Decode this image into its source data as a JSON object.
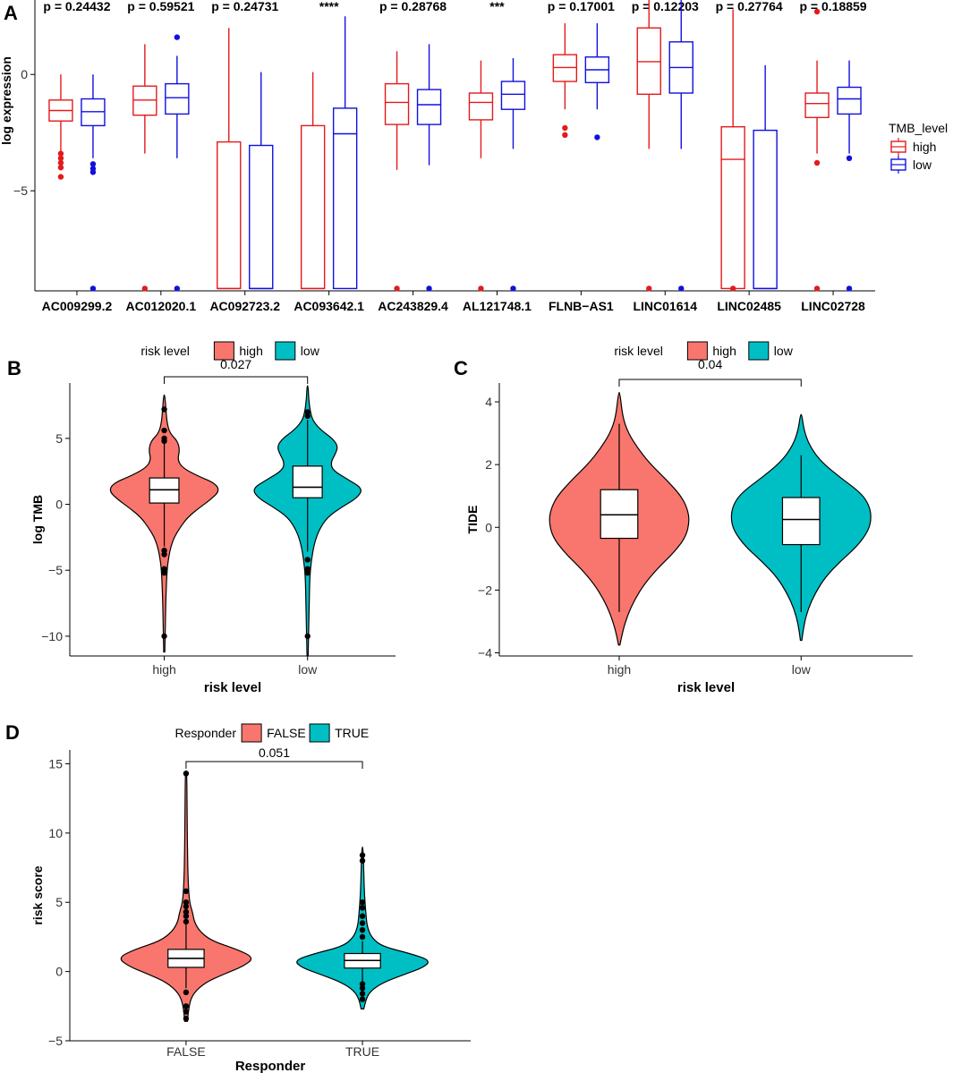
{
  "colors": {
    "high_box": "#E41A1C",
    "low_box": "#1010E0",
    "violin_a": "#F8766D",
    "violin_b": "#00BFC4",
    "axis": "#000000"
  },
  "chart_data": [
    {
      "id": "A",
      "panel_label": "A",
      "type": "box",
      "ylabel": "log expression",
      "xlabel": "",
      "ylim": [
        -9.3,
        3.2
      ],
      "yticks": [
        -5,
        0
      ],
      "legend": {
        "title": "TMB_level",
        "entries": [
          "high",
          "low"
        ],
        "position": "right"
      },
      "categories": [
        "AC009299.2",
        "AC012020.1",
        "AC092723.2",
        "AC093642.1",
        "AC243829.4",
        "AL121748.1",
        "FLNB−AS1",
        "LINC01614",
        "LINC02485",
        "LINC02728"
      ],
      "pvalues": [
        "p = 0.24432",
        "p = 0.59521",
        "p = 0.24731",
        "****",
        "p = 0.28768",
        "***",
        "p = 0.17001",
        "p = 0.12203",
        "p = 0.27764",
        "p = 0.18859"
      ],
      "series": [
        {
          "name": "high",
          "boxes": [
            {
              "wlo": -3.3,
              "q1": -2.0,
              "med": -1.55,
              "q3": -1.1,
              "whi": 0.0,
              "outliers": [
                -3.4,
                -3.6,
                -3.8,
                -4.0,
                -4.4
              ]
            },
            {
              "wlo": -3.4,
              "q1": -1.75,
              "med": -1.1,
              "q3": -0.5,
              "whi": 1.3,
              "outliers": [
                -9.2
              ]
            },
            {
              "wlo": -9.2,
              "q1": -9.2,
              "med": -9.2,
              "q3": -2.9,
              "whi": 2.0,
              "outliers": []
            },
            {
              "wlo": -9.2,
              "q1": -9.2,
              "med": -9.2,
              "q3": -2.2,
              "whi": 0.1,
              "outliers": []
            },
            {
              "wlo": -4.1,
              "q1": -2.15,
              "med": -1.2,
              "q3": -0.4,
              "whi": 1.0,
              "outliers": [
                -9.2
              ]
            },
            {
              "wlo": -3.6,
              "q1": -1.95,
              "med": -1.2,
              "q3": -0.8,
              "whi": 0.6,
              "outliers": [
                -9.2
              ]
            },
            {
              "wlo": -1.5,
              "q1": -0.3,
              "med": 0.3,
              "q3": 0.85,
              "whi": 2.2,
              "outliers": [
                -2.3,
                -2.6
              ]
            },
            {
              "wlo": -3.2,
              "q1": -0.85,
              "med": 0.55,
              "q3": 2.0,
              "whi": 3.2,
              "outliers": [
                -9.2
              ]
            },
            {
              "wlo": -9.2,
              "q1": -9.2,
              "med": -3.65,
              "q3": -2.25,
              "whi": 2.8,
              "outliers": [
                -9.2
              ]
            },
            {
              "wlo": -3.4,
              "q1": -1.85,
              "med": -1.25,
              "q3": -0.8,
              "whi": 0.6,
              "outliers": [
                -3.8,
                2.7,
                -9.2
              ]
            }
          ]
        },
        {
          "name": "low",
          "boxes": [
            {
              "wlo": -3.6,
              "q1": -2.2,
              "med": -1.6,
              "q3": -1.05,
              "whi": 0.0,
              "outliers": [
                -3.85,
                -4.05,
                -4.2,
                -9.2
              ]
            },
            {
              "wlo": -3.6,
              "q1": -1.7,
              "med": -1.0,
              "q3": -0.4,
              "whi": 0.8,
              "outliers": [
                1.6,
                -9.2
              ]
            },
            {
              "wlo": -9.2,
              "q1": -9.2,
              "med": -9.2,
              "q3": -3.05,
              "whi": 0.1,
              "outliers": []
            },
            {
              "wlo": -9.2,
              "q1": -9.2,
              "med": -2.55,
              "q3": -1.45,
              "whi": 2.5,
              "outliers": []
            },
            {
              "wlo": -3.9,
              "q1": -2.15,
              "med": -1.3,
              "q3": -0.65,
              "whi": 1.3,
              "outliers": [
                -9.2
              ]
            },
            {
              "wlo": -3.2,
              "q1": -1.5,
              "med": -0.85,
              "q3": -0.3,
              "whi": 0.7,
              "outliers": [
                -9.2
              ]
            },
            {
              "wlo": -1.5,
              "q1": -0.35,
              "med": 0.2,
              "q3": 0.75,
              "whi": 2.2,
              "outliers": [
                -2.7
              ]
            },
            {
              "wlo": -3.2,
              "q1": -0.8,
              "med": 0.3,
              "q3": 1.4,
              "whi": 3.5,
              "outliers": [
                -9.2
              ]
            },
            {
              "wlo": -9.2,
              "q1": -9.2,
              "med": -9.2,
              "q3": -2.4,
              "whi": 0.4,
              "outliers": []
            },
            {
              "wlo": -3.4,
              "q1": -1.7,
              "med": -1.05,
              "q3": -0.55,
              "whi": 0.6,
              "outliers": [
                -3.6,
                -9.2
              ]
            }
          ]
        }
      ]
    },
    {
      "id": "B",
      "panel_label": "B",
      "type": "violin",
      "ylabel": "log TMB",
      "xlabel": "risk level",
      "ylim": [
        -11.5,
        9.2
      ],
      "yticks": [
        -10,
        -5,
        0,
        5
      ],
      "legend": {
        "title": "risk level",
        "entries": [
          "high",
          "low"
        ],
        "position": "top"
      },
      "pvalue": "0.027",
      "groups": [
        {
          "name": "high",
          "color_key": "violin_a",
          "box": {
            "q1": 0.1,
            "med": 1.1,
            "q3": 2.0,
            "wlo": -3.2,
            "whi": 4.9
          },
          "outliers": [
            -10.0,
            -5.2,
            -4.9,
            -3.8,
            -3.5,
            4.8,
            5.0,
            5.6,
            7.2
          ],
          "violin": {
            "y": [
              -11.2,
              -9.0,
              -7.0,
              -5.0,
              -4.0,
              -3.2,
              -2.5,
              -1.8,
              -1.0,
              -0.3,
              0.3,
              1.0,
              1.6,
              2.2,
              2.8,
              3.4,
              4.1,
              4.8,
              5.4,
              6.2,
              7.2,
              8.3
            ],
            "w": [
              0.01,
              0.02,
              0.03,
              0.05,
              0.08,
              0.12,
              0.18,
              0.28,
              0.42,
              0.62,
              0.82,
              1.0,
              0.92,
              0.58,
              0.32,
              0.24,
              0.28,
              0.24,
              0.1,
              0.05,
              0.03,
              0.01
            ]
          }
        },
        {
          "name": "low",
          "color_key": "violin_b",
          "box": {
            "q1": 0.5,
            "med": 1.3,
            "q3": 2.9,
            "wlo": -3.6,
            "whi": 6.4
          },
          "outliers": [
            -10.0,
            -5.2,
            -4.9,
            -4.2,
            6.7,
            7.0
          ],
          "violin": {
            "y": [
              -11.5,
              -9.5,
              -7.5,
              -5.5,
              -4.2,
              -3.0,
              -2.0,
              -1.0,
              -0.2,
              0.5,
              1.2,
              1.9,
              2.6,
              3.2,
              3.8,
              4.4,
              5.0,
              5.6,
              6.3,
              7.0,
              8.0,
              9.0
            ],
            "w": [
              0.01,
              0.02,
              0.03,
              0.04,
              0.07,
              0.12,
              0.2,
              0.35,
              0.62,
              0.9,
              1.0,
              0.72,
              0.45,
              0.42,
              0.5,
              0.55,
              0.45,
              0.25,
              0.1,
              0.05,
              0.02,
              0.01
            ]
          }
        }
      ]
    },
    {
      "id": "C",
      "panel_label": "C",
      "type": "violin",
      "ylabel": "TIDE",
      "xlabel": "risk level",
      "ylim": [
        -4.1,
        4.6
      ],
      "yticks": [
        -4,
        -2,
        0,
        2,
        4
      ],
      "legend": {
        "title": "risk level",
        "entries": [
          "high",
          "low"
        ],
        "position": "top"
      },
      "pvalue": "0.04",
      "groups": [
        {
          "name": "high",
          "color_key": "violin_a",
          "box": {
            "q1": -0.35,
            "med": 0.4,
            "q3": 1.2,
            "wlo": -2.7,
            "whi": 3.3
          },
          "outliers": [],
          "violin": {
            "y": [
              -3.75,
              -3.3,
              -2.8,
              -2.3,
              -1.8,
              -1.3,
              -0.8,
              -0.3,
              0.2,
              0.6,
              1.0,
              1.5,
              2.0,
              2.5,
              3.0,
              3.5,
              4.3
            ],
            "w": [
              0.01,
              0.05,
              0.12,
              0.22,
              0.36,
              0.55,
              0.78,
              0.95,
              1.0,
              0.97,
              0.88,
              0.68,
              0.45,
              0.27,
              0.13,
              0.05,
              0.01
            ]
          }
        },
        {
          "name": "low",
          "color_key": "violin_b",
          "box": {
            "q1": -0.55,
            "med": 0.25,
            "q3": 0.95,
            "wlo": -2.7,
            "whi": 2.3
          },
          "outliers": [],
          "violin": {
            "y": [
              -3.6,
              -3.1,
              -2.6,
              -2.1,
              -1.6,
              -1.1,
              -0.6,
              -0.1,
              0.3,
              0.7,
              1.1,
              1.6,
              2.1,
              2.6,
              3.1,
              3.6
            ],
            "w": [
              0.01,
              0.04,
              0.1,
              0.2,
              0.34,
              0.55,
              0.8,
              0.96,
              1.0,
              0.97,
              0.85,
              0.55,
              0.28,
              0.12,
              0.04,
              0.01
            ]
          }
        }
      ]
    },
    {
      "id": "D",
      "panel_label": "D",
      "type": "violin",
      "ylabel": "risk score",
      "xlabel": "Responder",
      "ylim": [
        -5,
        16
      ],
      "yticks": [
        -5,
        0,
        5,
        10,
        15
      ],
      "legend": {
        "title": "Responder",
        "entries": [
          "FALSE",
          "TRUE"
        ],
        "position": "top"
      },
      "pvalue": "0.051",
      "groups": [
        {
          "name": "FALSE",
          "color_key": "violin_a",
          "box": {
            "q1": 0.3,
            "med": 0.95,
            "q3": 1.6,
            "wlo": -1.2,
            "whi": 3.4
          },
          "outliers": [
            -3.4,
            -2.9,
            -2.5,
            -1.5,
            3.6,
            4.0,
            4.3,
            4.7,
            5.0,
            5.8,
            14.3
          ],
          "violin": {
            "y": [
              -3.6,
              -2.5,
              -1.6,
              -0.8,
              -0.2,
              0.4,
              1.0,
              1.6,
              2.2,
              2.9,
              3.6,
              4.2,
              5.0,
              6.5,
              9.0,
              12.0,
              14.5
            ],
            "w": [
              0.02,
              0.04,
              0.1,
              0.28,
              0.55,
              0.85,
              1.0,
              0.75,
              0.38,
              0.2,
              0.12,
              0.1,
              0.05,
              0.03,
              0.02,
              0.015,
              0.01
            ]
          }
        },
        {
          "name": "TRUE",
          "color_key": "violin_b",
          "box": {
            "q1": 0.25,
            "med": 0.8,
            "q3": 1.3,
            "wlo": -0.8,
            "whi": 2.2
          },
          "outliers": [
            -2.0,
            -1.6,
            -1.2,
            -0.9,
            2.5,
            3.0,
            3.5,
            4.0,
            4.6,
            5.0,
            8.0,
            8.4
          ],
          "violin": {
            "y": [
              -2.7,
              -2.0,
              -1.4,
              -0.8,
              -0.2,
              0.3,
              0.8,
              1.3,
              1.8,
              2.4,
              3.2,
              4.2,
              5.5,
              7.0,
              9.0
            ],
            "w": [
              0.02,
              0.05,
              0.12,
              0.3,
              0.62,
              0.9,
              1.0,
              0.7,
              0.3,
              0.14,
              0.07,
              0.05,
              0.03,
              0.02,
              0.01
            ]
          }
        }
      ]
    }
  ]
}
